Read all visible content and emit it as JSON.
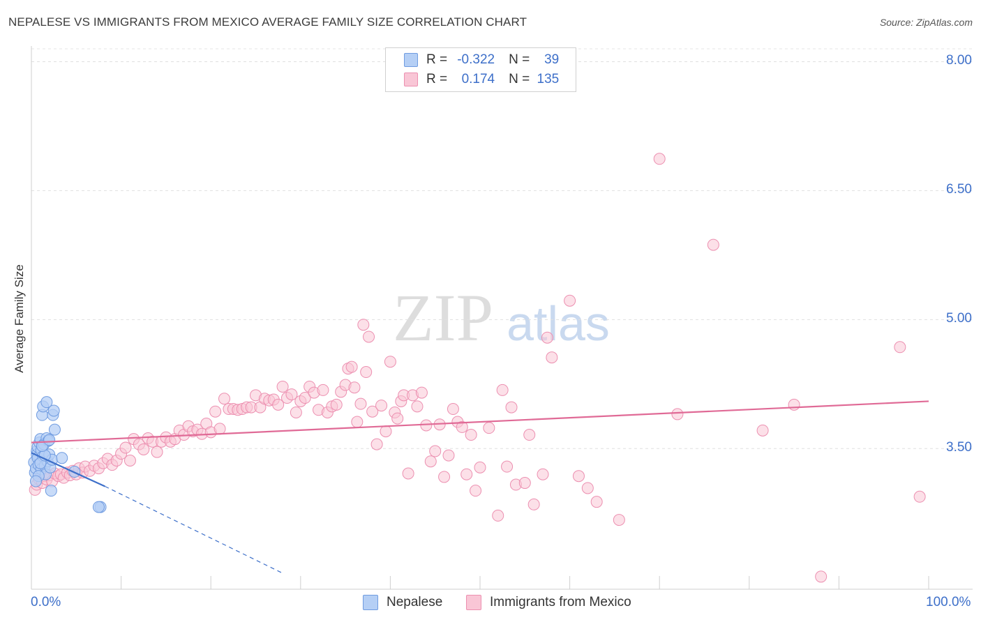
{
  "title": "NEPALESE VS IMMIGRANTS FROM MEXICO AVERAGE FAMILY SIZE CORRELATION CHART",
  "source": "Source: ZipAtlas.com",
  "watermark": {
    "zip": "ZIP",
    "atlas": "atlas"
  },
  "legend": {
    "r_label": "R =",
    "n_label": "N =",
    "rows": [
      {
        "r": "-0.322",
        "n": "39",
        "fill": "#b5cff5",
        "stroke": "#6f9be0"
      },
      {
        "r": "0.174",
        "n": "135",
        "fill": "#f9c6d6",
        "stroke": "#ec8fb0"
      }
    ]
  },
  "bottom_legend": [
    {
      "label": "Nepalese",
      "fill": "#b5cff5",
      "stroke": "#6f9be0"
    },
    {
      "label": "Immigrants from Mexico",
      "fill": "#f9c6d6",
      "stroke": "#ec8fb0"
    }
  ],
  "chart_data": {
    "type": "scatter",
    "title": "NEPALESE VS IMMIGRANTS FROM MEXICO AVERAGE FAMILY SIZE CORRELATION CHART",
    "xlabel": "",
    "ylabel": "Average Family Size",
    "x_tick_labels": [
      "0.0%",
      "100.0%"
    ],
    "y_tick_labels": [
      "3.50",
      "5.00",
      "6.50",
      "8.00"
    ],
    "y_ticks": [
      3.5,
      5.0,
      6.5,
      8.0
    ],
    "xlim": [
      0,
      100
    ],
    "ylim": [
      2.05,
      8.15
    ],
    "grid": "horizontal dashed",
    "legend_position": "top-center",
    "colors": {
      "nepalese": "#3d6fc9",
      "mexico": "#e06a96"
    },
    "series": [
      {
        "name": "Nepalese",
        "color": "#6f9be0",
        "points": [
          [
            0.3,
            3.34
          ],
          [
            0.4,
            3.22
          ],
          [
            0.5,
            3.27
          ],
          [
            0.6,
            3.47
          ],
          [
            0.6,
            3.43
          ],
          [
            0.7,
            3.39
          ],
          [
            0.7,
            3.52
          ],
          [
            0.8,
            3.31
          ],
          [
            0.9,
            3.57
          ],
          [
            1.0,
            3.61
          ],
          [
            1.1,
            3.48
          ],
          [
            1.1,
            3.26
          ],
          [
            1.2,
            3.89
          ],
          [
            1.3,
            3.99
          ],
          [
            1.3,
            3.41
          ],
          [
            1.4,
            3.55
          ],
          [
            1.5,
            3.3
          ],
          [
            1.6,
            3.2
          ],
          [
            1.7,
            3.62
          ],
          [
            1.8,
            3.35
          ],
          [
            1.9,
            3.59
          ],
          [
            2.0,
            3.43
          ],
          [
            2.1,
            3.28
          ],
          [
            2.2,
            3.01
          ],
          [
            2.3,
            3.37
          ],
          [
            2.4,
            3.89
          ],
          [
            2.5,
            3.94
          ],
          [
            1.0,
            3.33
          ],
          [
            0.8,
            3.18
          ],
          [
            1.5,
            3.42
          ],
          [
            1.2,
            3.53
          ],
          [
            2.0,
            3.6
          ],
          [
            2.6,
            3.72
          ],
          [
            3.4,
            3.39
          ],
          [
            4.8,
            3.23
          ],
          [
            7.7,
            2.82
          ],
          [
            7.5,
            2.82
          ],
          [
            1.7,
            4.04
          ],
          [
            0.5,
            3.12
          ]
        ]
      },
      {
        "name": "Immigrants from Mexico",
        "color": "#ec8fb0",
        "points": [
          [
            0.4,
            3.02
          ],
          [
            0.6,
            3.08
          ],
          [
            0.8,
            3.15
          ],
          [
            1.0,
            3.22
          ],
          [
            1.2,
            3.1
          ],
          [
            1.4,
            3.18
          ],
          [
            1.7,
            3.14
          ],
          [
            2.0,
            3.19
          ],
          [
            2.3,
            3.12
          ],
          [
            2.6,
            3.21
          ],
          [
            3.0,
            3.18
          ],
          [
            3.3,
            3.2
          ],
          [
            3.6,
            3.16
          ],
          [
            4.0,
            3.22
          ],
          [
            4.3,
            3.19
          ],
          [
            4.6,
            3.24
          ],
          [
            5.0,
            3.2
          ],
          [
            5.3,
            3.27
          ],
          [
            5.7,
            3.22
          ],
          [
            6.0,
            3.29
          ],
          [
            6.5,
            3.24
          ],
          [
            7.0,
            3.3
          ],
          [
            7.5,
            3.27
          ],
          [
            8.0,
            3.33
          ],
          [
            8.5,
            3.38
          ],
          [
            9.0,
            3.31
          ],
          [
            9.5,
            3.36
          ],
          [
            10.0,
            3.44
          ],
          [
            10.5,
            3.51
          ],
          [
            11.0,
            3.36
          ],
          [
            11.4,
            3.61
          ],
          [
            12.0,
            3.55
          ],
          [
            12.5,
            3.49
          ],
          [
            13.0,
            3.62
          ],
          [
            13.5,
            3.58
          ],
          [
            14.0,
            3.46
          ],
          [
            14.5,
            3.58
          ],
          [
            15.0,
            3.63
          ],
          [
            15.5,
            3.58
          ],
          [
            16.0,
            3.61
          ],
          [
            16.5,
            3.71
          ],
          [
            17.0,
            3.66
          ],
          [
            17.5,
            3.76
          ],
          [
            18.0,
            3.7
          ],
          [
            18.5,
            3.72
          ],
          [
            19.0,
            3.67
          ],
          [
            19.5,
            3.79
          ],
          [
            20.0,
            3.69
          ],
          [
            20.5,
            3.93
          ],
          [
            21.0,
            3.73
          ],
          [
            21.5,
            4.08
          ],
          [
            22.0,
            3.96
          ],
          [
            22.5,
            3.96
          ],
          [
            23.0,
            3.95
          ],
          [
            23.5,
            3.96
          ],
          [
            24.0,
            3.98
          ],
          [
            24.5,
            3.98
          ],
          [
            25.0,
            4.12
          ],
          [
            25.5,
            3.98
          ],
          [
            26.0,
            4.08
          ],
          [
            26.5,
            4.06
          ],
          [
            27.0,
            4.07
          ],
          [
            27.5,
            4.01
          ],
          [
            28.0,
            4.22
          ],
          [
            28.5,
            4.09
          ],
          [
            29.0,
            4.13
          ],
          [
            29.5,
            3.92
          ],
          [
            30.0,
            4.05
          ],
          [
            30.5,
            4.09
          ],
          [
            31.0,
            4.22
          ],
          [
            31.5,
            4.15
          ],
          [
            32.0,
            3.95
          ],
          [
            32.5,
            4.18
          ],
          [
            33.0,
            3.92
          ],
          [
            33.5,
            3.99
          ],
          [
            34.0,
            4.01
          ],
          [
            34.5,
            4.16
          ],
          [
            35.0,
            4.24
          ],
          [
            35.3,
            4.43
          ],
          [
            35.7,
            4.45
          ],
          [
            36.0,
            4.21
          ],
          [
            36.3,
            3.81
          ],
          [
            36.7,
            4.02
          ],
          [
            37.0,
            4.94
          ],
          [
            37.3,
            4.39
          ],
          [
            37.6,
            4.8
          ],
          [
            38.0,
            3.93
          ],
          [
            38.5,
            3.55
          ],
          [
            39.0,
            4.0
          ],
          [
            39.5,
            3.7
          ],
          [
            40.0,
            4.51
          ],
          [
            40.5,
            3.92
          ],
          [
            40.8,
            3.85
          ],
          [
            41.2,
            4.05
          ],
          [
            41.5,
            4.12
          ],
          [
            42.0,
            3.21
          ],
          [
            42.5,
            4.12
          ],
          [
            43.0,
            3.99
          ],
          [
            43.5,
            4.15
          ],
          [
            44.0,
            3.77
          ],
          [
            44.5,
            3.35
          ],
          [
            45.0,
            3.47
          ],
          [
            45.5,
            3.78
          ],
          [
            46.0,
            3.17
          ],
          [
            46.5,
            3.42
          ],
          [
            47.0,
            3.96
          ],
          [
            47.5,
            3.81
          ],
          [
            48.0,
            3.75
          ],
          [
            48.5,
            3.2
          ],
          [
            49.0,
            3.66
          ],
          [
            49.5,
            3.01
          ],
          [
            50.0,
            3.28
          ],
          [
            51.0,
            3.74
          ],
          [
            52.0,
            2.72
          ],
          [
            52.5,
            4.18
          ],
          [
            53.0,
            3.29
          ],
          [
            53.5,
            3.98
          ],
          [
            54.0,
            3.08
          ],
          [
            55.0,
            3.1
          ],
          [
            55.5,
            3.66
          ],
          [
            56.0,
            2.85
          ],
          [
            57.0,
            3.2
          ],
          [
            57.5,
            4.79
          ],
          [
            58.0,
            4.56
          ],
          [
            60.0,
            5.22
          ],
          [
            61.0,
            3.18
          ],
          [
            62.0,
            3.04
          ],
          [
            63.0,
            2.88
          ],
          [
            65.5,
            2.67
          ],
          [
            70.0,
            6.87
          ],
          [
            72.0,
            3.9
          ],
          [
            76.0,
            5.87
          ],
          [
            81.5,
            3.71
          ],
          [
            85.0,
            4.01
          ],
          [
            88.0,
            2.01
          ],
          [
            96.8,
            4.68
          ],
          [
            99.0,
            2.94
          ]
        ]
      }
    ],
    "trend_lines": [
      {
        "series": "Nepalese",
        "x": [
          0,
          8.2
        ],
        "y": [
          3.45,
          3.06
        ],
        "dashed_extension_to": [
          28,
          2.05
        ]
      },
      {
        "series": "Immigrants from Mexico",
        "x": [
          0,
          100
        ],
        "y": [
          3.57,
          4.05
        ]
      }
    ]
  }
}
